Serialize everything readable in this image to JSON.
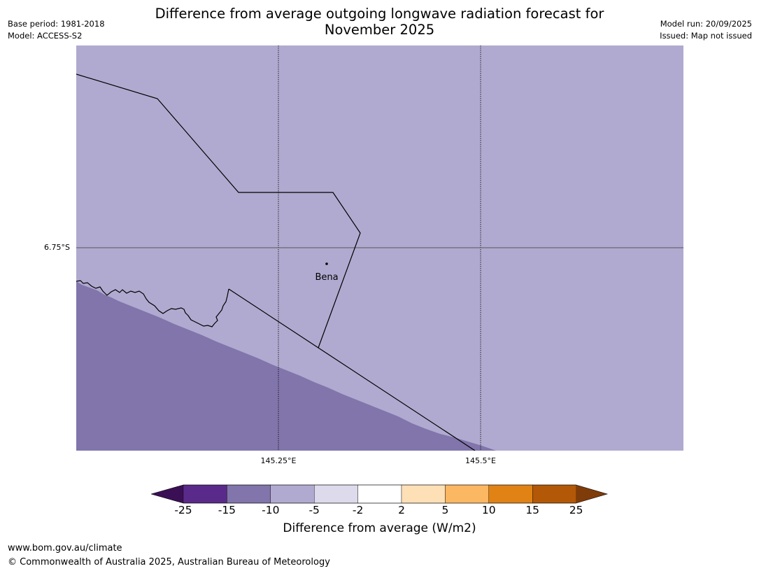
{
  "header": {
    "base_period": "Base period: 1981-2018",
    "model": "Model: ACCESS-S2",
    "model_run": "Model run: 20/09/2025",
    "issued": "Issued: Map not issued",
    "title_line1": "Difference from average outgoing longwave radiation forecast for",
    "title_line2": "November 2025"
  },
  "map": {
    "lat_label": "6.75°S",
    "lon_labels": [
      "145.25°E",
      "145.5°E"
    ],
    "place": "Bena",
    "colors": {
      "background_category": "#b0aad0",
      "lower_category": "#8175ab"
    }
  },
  "colorbar": {
    "ticks": [
      "-25",
      "-15",
      "-10",
      "-5",
      "-2",
      "2",
      "5",
      "10",
      "15",
      "25"
    ],
    "colors": [
      "#3b0f55",
      "#5a2a8a",
      "#8175ab",
      "#b0aad0",
      "#dcdaeb",
      "#ffffff",
      "#fee0b6",
      "#fbb761",
      "#e08214",
      "#b35806",
      "#7f3b08"
    ],
    "title": "Difference from average (W/m2)"
  },
  "footer": {
    "url": "www.bom.gov.au/climate",
    "copyright": "© Commonwealth of Australia 2025, Australian Bureau of Meteorology"
  }
}
